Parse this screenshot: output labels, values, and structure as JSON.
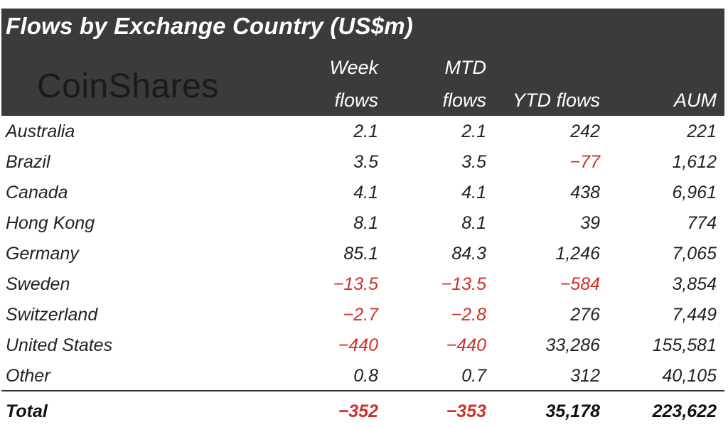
{
  "header": {
    "title": "Flows by Exchange Country (US$m)",
    "logo": "CoinShares",
    "columns": [
      {
        "line1": "Week",
        "line2": "flows"
      },
      {
        "line1": "MTD",
        "line2": "flows"
      },
      {
        "line1": "",
        "line2": "YTD flows"
      },
      {
        "line1": "",
        "line2": "AUM"
      }
    ]
  },
  "colors": {
    "header_bg": "#3b3b3b",
    "negative": "#d0302a"
  },
  "chart_data": {
    "type": "table",
    "title": "Flows by Exchange Country (US$m)",
    "columns": [
      "Week flows",
      "MTD flows",
      "YTD flows",
      "AUM"
    ],
    "rows": [
      {
        "name": "Australia",
        "values": [
          "2.1",
          "2.1",
          "242",
          "221"
        ]
      },
      {
        "name": "Brazil",
        "values": [
          "3.5",
          "3.5",
          "-77",
          "1,612"
        ]
      },
      {
        "name": "Canada",
        "values": [
          "4.1",
          "4.1",
          "438",
          "6,961"
        ]
      },
      {
        "name": "Hong Kong",
        "values": [
          "8.1",
          "8.1",
          "39",
          "774"
        ]
      },
      {
        "name": "Germany",
        "values": [
          "85.1",
          "84.3",
          "1,246",
          "7,065"
        ]
      },
      {
        "name": "Sweden",
        "values": [
          "-13.5",
          "-13.5",
          "-584",
          "3,854"
        ]
      },
      {
        "name": "Switzerland",
        "values": [
          "-2.7",
          "-2.8",
          "276",
          "7,449"
        ]
      },
      {
        "name": "United States",
        "values": [
          "-440",
          "-440",
          "33,286",
          "155,581"
        ]
      },
      {
        "name": "Other",
        "values": [
          "0.8",
          "0.7",
          "312",
          "40,105"
        ]
      }
    ],
    "total": {
      "name": "Total",
      "values": [
        "-352",
        "-353",
        "35,178",
        "223,622"
      ]
    }
  }
}
